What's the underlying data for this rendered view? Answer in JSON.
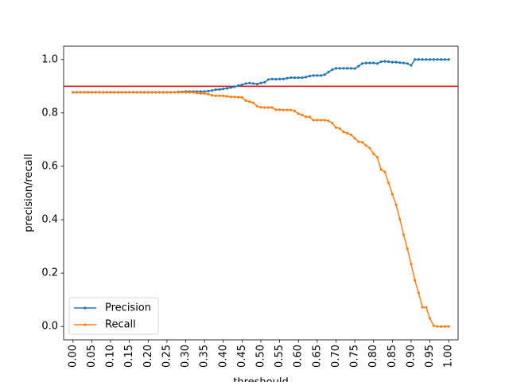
{
  "chart_data": {
    "type": "line",
    "xlabel": "threshould",
    "ylabel": "precision/recall",
    "xlim": [
      -0.025,
      1.025
    ],
    "ylim": [
      -0.05,
      1.05
    ],
    "x_ticks": [
      0.0,
      0.05,
      0.1,
      0.15,
      0.2,
      0.25,
      0.3,
      0.35,
      0.4,
      0.45,
      0.5,
      0.55,
      0.6,
      0.65,
      0.7,
      0.75,
      0.8,
      0.85,
      0.9,
      0.95,
      1.0
    ],
    "x_tick_labels": [
      "0.00",
      "0.05",
      "0.10",
      "0.15",
      "0.20",
      "0.25",
      "0.30",
      "0.35",
      "0.40",
      "0.45",
      "0.50",
      "0.55",
      "0.60",
      "0.65",
      "0.70",
      "0.75",
      "0.80",
      "0.85",
      "0.90",
      "0.95",
      "1.00"
    ],
    "y_ticks": [
      0.0,
      0.2,
      0.4,
      0.6,
      0.8,
      1.0
    ],
    "y_tick_labels": [
      "0.0",
      "0.2",
      "0.4",
      "0.6",
      "0.8",
      "1.0"
    ],
    "grid": false,
    "legend_position": "lower-left",
    "reference_line": {
      "y": 0.9,
      "color": "#e00000"
    },
    "x": [
      0.0,
      0.01,
      0.02,
      0.03,
      0.04,
      0.05,
      0.06,
      0.07,
      0.08,
      0.09,
      0.1,
      0.11,
      0.12,
      0.13,
      0.14,
      0.15,
      0.16,
      0.17,
      0.18,
      0.19,
      0.2,
      0.21,
      0.22,
      0.23,
      0.24,
      0.25,
      0.26,
      0.27,
      0.28,
      0.29,
      0.3,
      0.31,
      0.32,
      0.33,
      0.34,
      0.35,
      0.36,
      0.37,
      0.38,
      0.39,
      0.4,
      0.41,
      0.42,
      0.43,
      0.44,
      0.45,
      0.46,
      0.47,
      0.48,
      0.49,
      0.5,
      0.51,
      0.52,
      0.53,
      0.54,
      0.55,
      0.56,
      0.57,
      0.58,
      0.59,
      0.6,
      0.61,
      0.62,
      0.63,
      0.64,
      0.65,
      0.66,
      0.67,
      0.68,
      0.69,
      0.7,
      0.71,
      0.72,
      0.73,
      0.74,
      0.75,
      0.76,
      0.77,
      0.78,
      0.79,
      0.8,
      0.81,
      0.82,
      0.83,
      0.84,
      0.85,
      0.86,
      0.87,
      0.88,
      0.89,
      0.9,
      0.91,
      0.92,
      0.93,
      0.94,
      0.95,
      0.96,
      0.97,
      0.98,
      0.99,
      1.0
    ],
    "series": [
      {
        "name": "Precision",
        "color": "#1f77b4",
        "values": [
          0.877,
          0.877,
          0.877,
          0.877,
          0.877,
          0.877,
          0.877,
          0.877,
          0.877,
          0.877,
          0.877,
          0.877,
          0.877,
          0.877,
          0.877,
          0.877,
          0.877,
          0.877,
          0.877,
          0.877,
          0.877,
          0.877,
          0.877,
          0.877,
          0.877,
          0.877,
          0.877,
          0.877,
          0.879,
          0.879,
          0.88,
          0.88,
          0.88,
          0.88,
          0.88,
          0.88,
          0.882,
          0.884,
          0.887,
          0.888,
          0.89,
          0.892,
          0.895,
          0.898,
          0.902,
          0.905,
          0.91,
          0.912,
          0.91,
          0.908,
          0.912,
          0.915,
          0.925,
          0.927,
          0.926,
          0.927,
          0.927,
          0.93,
          0.932,
          0.932,
          0.932,
          0.932,
          0.934,
          0.938,
          0.94,
          0.94,
          0.94,
          0.943,
          0.953,
          0.962,
          0.967,
          0.967,
          0.967,
          0.967,
          0.967,
          0.966,
          0.975,
          0.985,
          0.987,
          0.987,
          0.987,
          0.985,
          0.992,
          0.993,
          0.992,
          0.99,
          0.99,
          0.988,
          0.987,
          0.985,
          0.978,
          1.0,
          1.0,
          1.0,
          1.0,
          1.0,
          1.0,
          1.0,
          1.0,
          1.0,
          1.0
        ]
      },
      {
        "name": "Recall",
        "color": "#ff7f0e",
        "values": [
          0.877,
          0.877,
          0.877,
          0.877,
          0.877,
          0.877,
          0.877,
          0.877,
          0.877,
          0.877,
          0.877,
          0.877,
          0.877,
          0.877,
          0.877,
          0.877,
          0.877,
          0.877,
          0.877,
          0.877,
          0.877,
          0.877,
          0.877,
          0.877,
          0.877,
          0.877,
          0.877,
          0.877,
          0.877,
          0.877,
          0.877,
          0.877,
          0.877,
          0.875,
          0.873,
          0.873,
          0.87,
          0.866,
          0.864,
          0.864,
          0.864,
          0.862,
          0.86,
          0.86,
          0.859,
          0.858,
          0.846,
          0.842,
          0.838,
          0.825,
          0.821,
          0.82,
          0.82,
          0.82,
          0.812,
          0.812,
          0.811,
          0.811,
          0.811,
          0.807,
          0.797,
          0.792,
          0.785,
          0.785,
          0.773,
          0.773,
          0.773,
          0.773,
          0.77,
          0.762,
          0.745,
          0.742,
          0.729,
          0.724,
          0.718,
          0.705,
          0.692,
          0.69,
          0.678,
          0.668,
          0.647,
          0.634,
          0.588,
          0.579,
          0.538,
          0.496,
          0.456,
          0.402,
          0.344,
          0.292,
          0.234,
          0.173,
          0.126,
          0.072,
          0.072,
          0.03,
          0.003,
          0.0,
          0.0,
          0.0,
          0.0
        ]
      }
    ]
  }
}
